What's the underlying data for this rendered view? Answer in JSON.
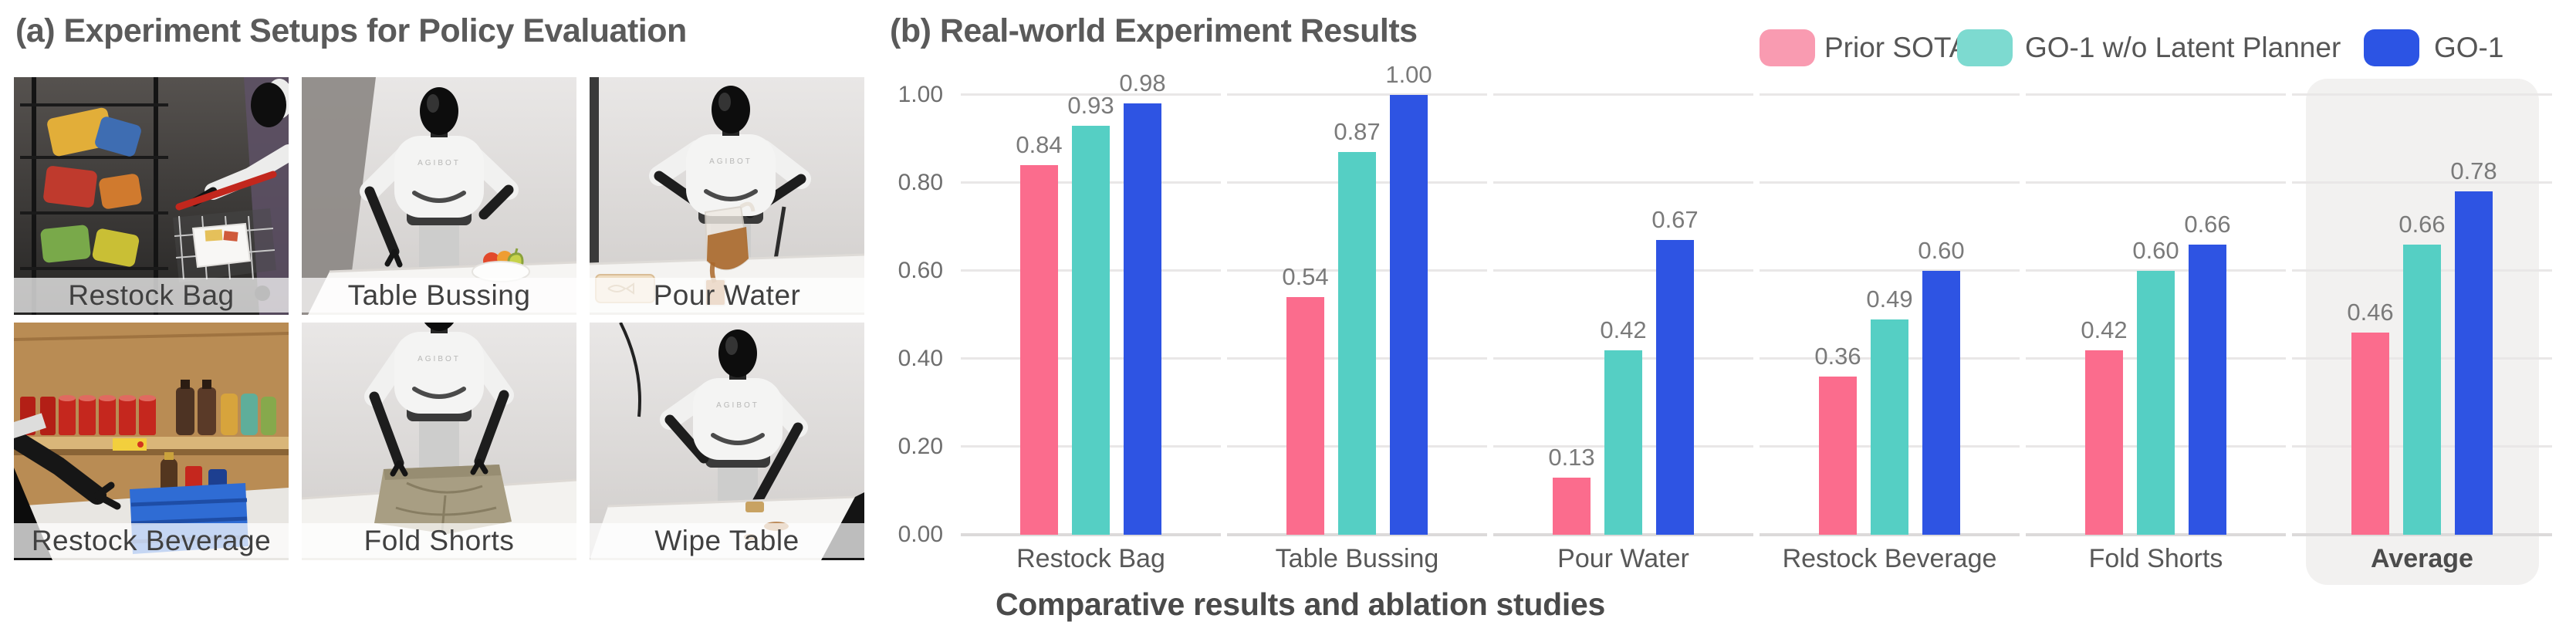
{
  "panel_a": {
    "title": "(a) Experiment Setups for Policy Evaluation",
    "robot_brand": "AGIBOT",
    "setups": [
      {
        "label": "Restock Bag",
        "scene": "restock-bag"
      },
      {
        "label": "Table Bussing",
        "scene": "table-bussing"
      },
      {
        "label": "Pour Water",
        "scene": "pour-water"
      },
      {
        "label": "Restock Beverage",
        "scene": "restock-beverage"
      },
      {
        "label": "Fold Shorts",
        "scene": "fold-shorts"
      },
      {
        "label": "Wipe Table",
        "scene": "wipe-table"
      }
    ]
  },
  "panel_b": {
    "title": "(b) Real-world Experiment Results",
    "caption": "Comparative results and ablation studies",
    "legend": [
      {
        "label": "Prior SOTA",
        "swatch_color": "#F99BB1"
      },
      {
        "label": "GO-1 w/o Latent Planner",
        "swatch_color": "#7DDAD0"
      },
      {
        "label": "GO-1",
        "swatch_color": "#2C54E4"
      }
    ]
  },
  "chart_data": {
    "type": "bar",
    "title": "(b) Real-world Experiment Results",
    "categories": [
      "Restock Bag",
      "Table Bussing",
      "Pour Water",
      "Restock Beverage",
      "Fold Shorts",
      "Average"
    ],
    "series": [
      {
        "name": "Prior SOTA",
        "color": "#FB6C8D",
        "values": [
          0.84,
          0.54,
          0.13,
          0.36,
          0.42,
          0.46
        ]
      },
      {
        "name": "GO-1 w/o Latent Planner",
        "color": "#55CFC4",
        "values": [
          0.93,
          0.87,
          0.42,
          0.49,
          0.6,
          0.66
        ]
      },
      {
        "name": "GO-1",
        "color": "#2E54E3",
        "values": [
          0.98,
          1.0,
          0.67,
          0.6,
          0.66,
          0.78
        ]
      }
    ],
    "yticks": [
      "0.00",
      "0.20",
      "0.40",
      "0.60",
      "0.80",
      "1.00"
    ],
    "ylim": [
      0,
      1.0
    ],
    "grid": true,
    "value_labels": true,
    "legend_position": "top-right",
    "highlight_category": "Average",
    "highlight_bg": "#F2F1F0"
  }
}
